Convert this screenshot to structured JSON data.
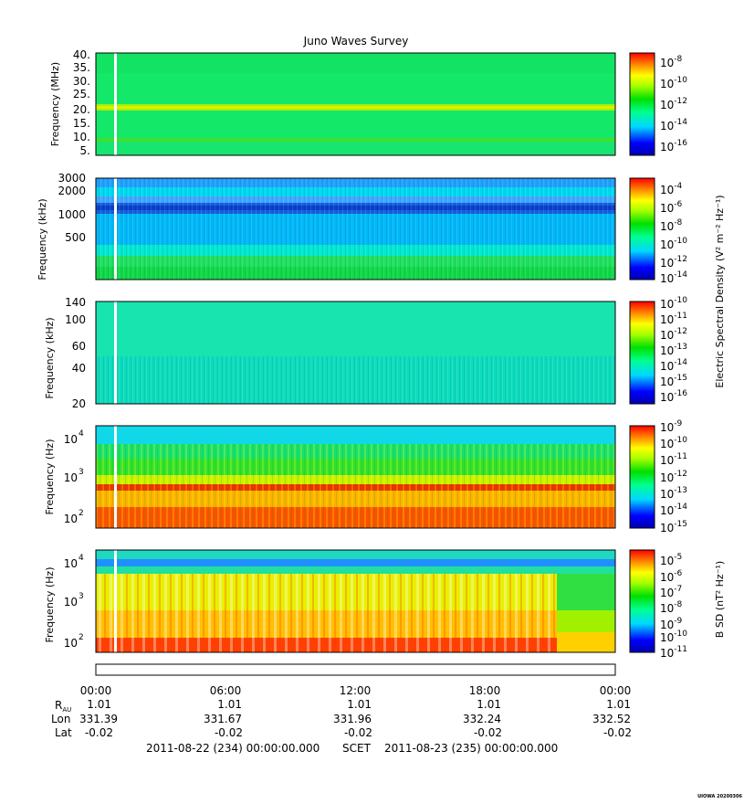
{
  "title": "Juno Waves Survey",
  "footer_stamp": "UIOWA 20200306",
  "scet_start": "2011-08-22 (234) 00:00:00.000",
  "scet_label": "SCET",
  "scet_end": "2011-08-23 (235) 00:00:00.000",
  "shared_colorbar_label": "Electric Spectral Density (V² m⁻² Hz⁻¹)",
  "chart_data": [
    {
      "type": "heatmap",
      "panel": 1,
      "ylabel": "Frequency (MHz)",
      "y_ticks": [
        "40.",
        "35.",
        "30.",
        "25.",
        "20.",
        "15.",
        "10.",
        "5."
      ],
      "y_range": [
        3.5,
        41
      ],
      "colorbar": {
        "ticks": [
          "-8",
          "-10",
          "-12",
          "-14",
          "-16"
        ],
        "base": "10",
        "range": [
          -17,
          -7.8
        ]
      },
      "data_gap_hour": 0.95,
      "features": "uniform background about 10^-13, narrow bright band near 21 MHz and weak band near 9 MHz"
    },
    {
      "type": "heatmap",
      "panel": 2,
      "ylabel": "Frequency (kHz)",
      "y_ticks": [
        "3000",
        "2000",
        "1000",
        "500"
      ],
      "y_range": [
        110,
        3100
      ],
      "colorbar": {
        "ticks": [
          "-4",
          "-6",
          "-8",
          "-10",
          "-12",
          "-14"
        ],
        "base": "10",
        "range": [
          -14.5,
          -3.4
        ]
      },
      "data_gap_hour": 0.95,
      "features": "dark blue band near 1000-1300 kHz, green emission below about 200 kHz"
    },
    {
      "type": "heatmap",
      "panel": 3,
      "ylabel": "Frequency (kHz)",
      "y_ticks": [
        "140",
        "100",
        "60",
        "40",
        "20"
      ],
      "y_range": [
        20,
        140
      ],
      "colorbar": {
        "ticks": [
          "-10",
          "-11",
          "-12",
          "-13",
          "-14",
          "-15",
          "-16"
        ],
        "base": "10",
        "range": [
          -16.4,
          -9.8
        ]
      },
      "data_gap_hour": 0.95,
      "features": "uniform background about 10^-14"
    },
    {
      "type": "heatmap",
      "panel": 4,
      "ylabel": "Frequency (Hz)",
      "y_ticks": [
        "10",
        "10",
        "10"
      ],
      "y_tick_exponents": [
        "4",
        "3",
        "2"
      ],
      "y_range": [
        50,
        20000
      ],
      "colorbar": {
        "ticks": [
          "-9",
          "-10",
          "-11",
          "-12",
          "-13",
          "-14",
          "-15"
        ],
        "base": "10",
        "range": [
          -15.1,
          -9
        ]
      },
      "data_gap_hour": 0.95,
      "features": "bright red line near 600 Hz across the day, intense red/orange below it, green above"
    },
    {
      "type": "heatmap",
      "panel": 5,
      "ylabel": "Frequency (Hz)",
      "y_ticks": [
        "10",
        "10",
        "10"
      ],
      "y_tick_exponents": [
        "4",
        "3",
        "2"
      ],
      "y_range": [
        50,
        20000
      ],
      "colorbar": {
        "label": "B SD (nT² Hz⁻¹)",
        "ticks": [
          "-5",
          "-6",
          "-7",
          "-8",
          "-9",
          "-10",
          "-11"
        ],
        "base": "10",
        "range": [
          -11,
          -4.6
        ]
      },
      "data_gap_hour": 0.95,
      "features": "banded yellow/red striations from 00:00 to about 20:40, smoother green after"
    }
  ],
  "time_axis": {
    "ticks": [
      "00:00",
      "06:00",
      "12:00",
      "18:00",
      "00:00"
    ],
    "rows": [
      {
        "label": "R",
        "label_sub": "AU",
        "values": [
          "1.01",
          "1.01",
          "1.01",
          "1.01",
          "1.01"
        ]
      },
      {
        "label": "Lon",
        "values": [
          "331.39",
          "331.67",
          "331.96",
          "332.24",
          "332.52"
        ]
      },
      {
        "label": "Lat",
        "values": [
          "-0.02",
          "-0.02",
          "-0.02",
          "-0.02",
          "-0.02"
        ]
      }
    ]
  }
}
